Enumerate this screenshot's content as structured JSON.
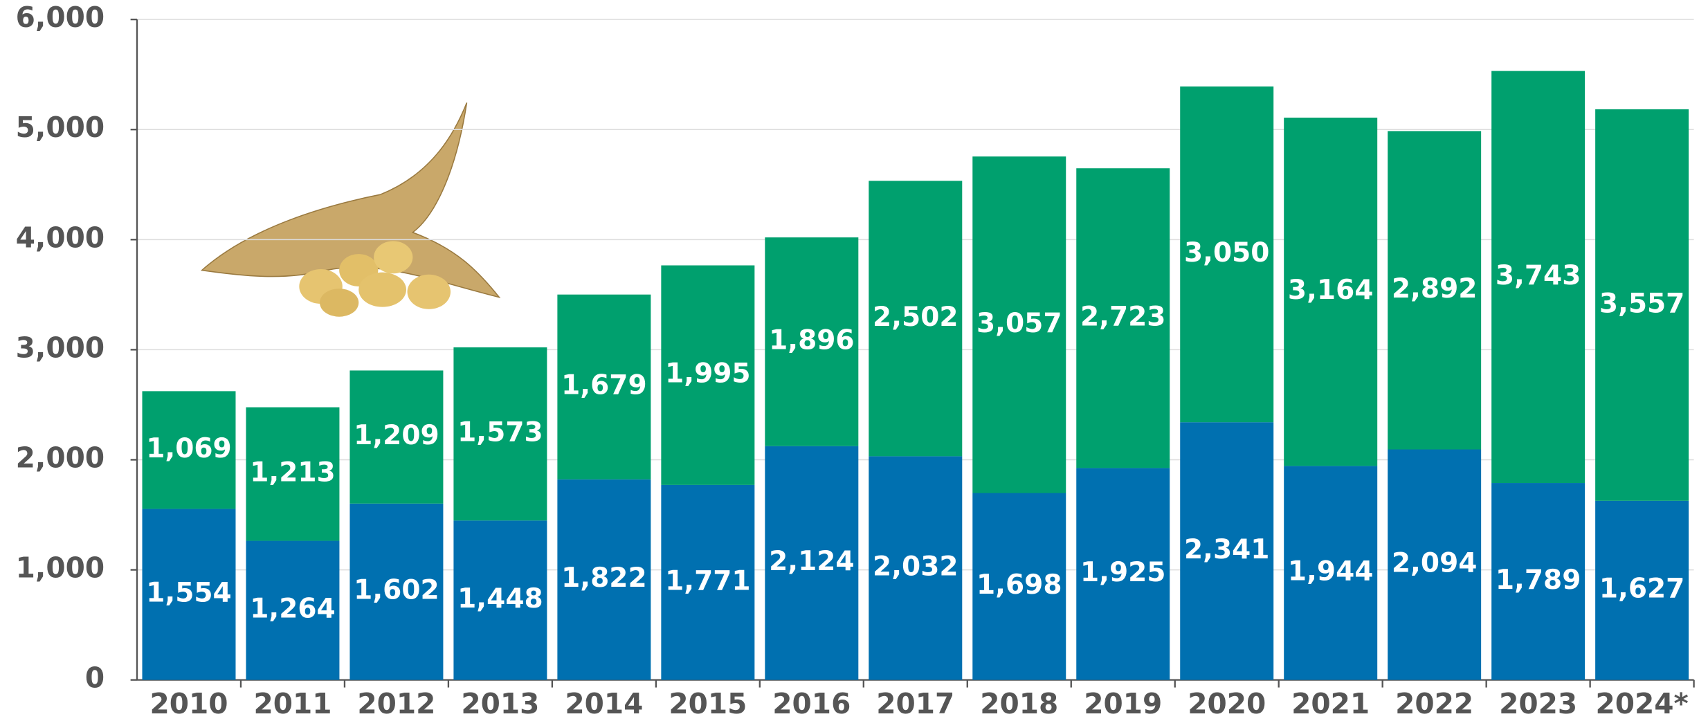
{
  "chart_data": {
    "type": "stacked-bar",
    "categories": [
      "2010",
      "2011",
      "2012",
      "2013",
      "2014",
      "2015",
      "2016",
      "2017",
      "2018",
      "2019",
      "2020",
      "2021",
      "2022",
      "2023",
      "2024*"
    ],
    "series": [
      {
        "color": "#0070b0",
        "values": [
          1554,
          1264,
          1602,
          1448,
          1822,
          1771,
          2124,
          2032,
          1698,
          1925,
          2341,
          1944,
          2094,
          1789,
          1627
        ],
        "value_labels": [
          "1,554",
          "1,264",
          "1,602",
          "1,448",
          "1,822",
          "1,771",
          "2,124",
          "2,032",
          "1,698",
          "1,925",
          "2,341",
          "1,944",
          "2,094",
          "1,789",
          "1,627"
        ]
      },
      {
        "color": "#00a06e",
        "values": [
          1069,
          1213,
          1209,
          1573,
          1679,
          1995,
          1896,
          2502,
          3057,
          2723,
          3050,
          3164,
          2892,
          3743,
          3557
        ],
        "value_labels": [
          "1,069",
          "1,213",
          "1,209",
          "1,573",
          "1,679",
          "1,995",
          "1,896",
          "2,502",
          "3,057",
          "2,723",
          "3,050",
          "3,164",
          "2,892",
          "3,743",
          "3,557"
        ]
      }
    ],
    "ylim": [
      0,
      6000
    ],
    "yticks": [
      0,
      {
        "value": 1000,
        "label": "1,000"
      },
      {
        "value": 2000,
        "label": "2,000"
      },
      {
        "value": 3000,
        "label": "3,000"
      },
      {
        "value": 4000,
        "label": "4,000"
      },
      {
        "value": 5000,
        "label": "5,000"
      },
      {
        "value": 6000,
        "label": "6,000"
      }
    ],
    "grid": true
  }
}
